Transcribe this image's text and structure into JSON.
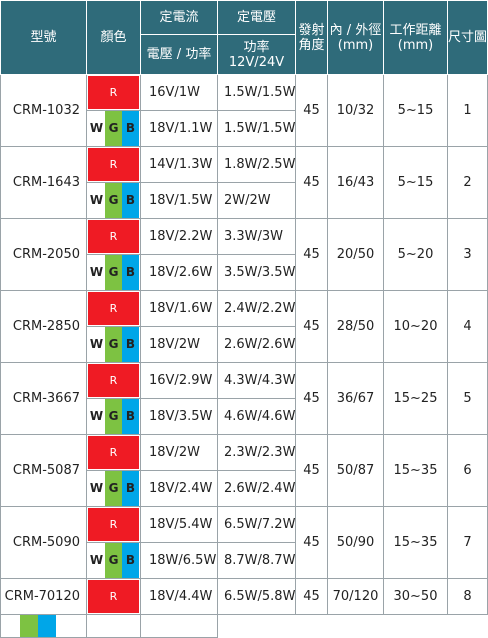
{
  "header": {
    "model": "型號",
    "color": "顏色",
    "cc_group": "定電流",
    "cv_group": "定電壓",
    "cc_sub": "電壓 / 功率",
    "cv_sub_line1": "功率",
    "cv_sub_line2": "12V/24V",
    "angle": "發射角度",
    "diameter": "內 / 外徑 (mm)",
    "distance": "工作距離(mm)",
    "size": "尺寸圖"
  },
  "swatch": {
    "r": "R",
    "w": "W",
    "g": "G",
    "b": "B"
  },
  "colors": {
    "red": "#ef1b24",
    "green": "#7dc242",
    "blue": "#00a6e8",
    "header": "#2f6b7a"
  },
  "rows": [
    {
      "model": "CRM-1032",
      "cc1": "16V/1W",
      "cv1": "1.5W/1.5W",
      "cc2": "18V/1.1W",
      "cv2": "1.5W/1.5W",
      "angle": "45",
      "diameter": "10/32",
      "distance": "5~15",
      "size": "1"
    },
    {
      "model": "CRM-1643",
      "cc1": "14V/1.3W",
      "cv1": "1.8W/2.5W",
      "cc2": "18V/1.5W",
      "cv2": "2W/2W",
      "angle": "45",
      "diameter": "16/43",
      "distance": "5~15",
      "size": "2"
    },
    {
      "model": "CRM-2050",
      "cc1": "18V/2.2W",
      "cv1": "3.3W/3W",
      "cc2": "18V/2.6W",
      "cv2": "3.5W/3.5W",
      "angle": "45",
      "diameter": "20/50",
      "distance": "5~20",
      "size": "3"
    },
    {
      "model": "CRM-2850",
      "cc1": "18V/1.6W",
      "cv1": "2.4W/2.2W",
      "cc2": "18V/2W",
      "cv2": "2.6W/2.6W",
      "angle": "45",
      "diameter": "28/50",
      "distance": "10~20",
      "size": "4"
    },
    {
      "model": "CRM-3667",
      "cc1": "16V/2.9W",
      "cv1": "4.3W/4.3W",
      "cc2": "18V/3.5W",
      "cv2": "4.6W/4.6W",
      "angle": "45",
      "diameter": "36/67",
      "distance": "15~25",
      "size": "5"
    },
    {
      "model": "CRM-5087",
      "cc1": "18V/2W",
      "cv1": "2.3W/2.3W",
      "cc2": "18V/2.4W",
      "cv2": "2.6W/2.4W",
      "angle": "45",
      "diameter": "50/87",
      "distance": "15~35",
      "size": "6"
    },
    {
      "model": "CRM-5090",
      "cc1": "18V/5.4W",
      "cv1": "6.5W/7.2W",
      "cc2": "18W/6.5W",
      "cv2": "8.7W/8.7W",
      "angle": "45",
      "diameter": "50/90",
      "distance": "15~35",
      "size": "7"
    },
    {
      "model": "CRM-70120",
      "cc1": "18V/4.4W",
      "cv1": "6.5W/5.8W",
      "angle": "45",
      "diameter": "70/120",
      "distance": "30~50",
      "size": "8"
    }
  ]
}
